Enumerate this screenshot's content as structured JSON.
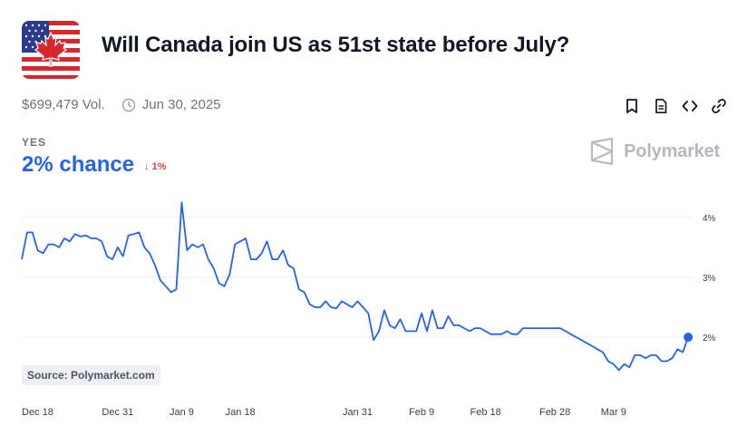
{
  "header": {
    "title": "Will Canada join US as 51st state before July?",
    "icon": "us-canada-flag-icon"
  },
  "meta": {
    "volume": "$699,479 Vol.",
    "end_date": "Jun 30, 2025"
  },
  "actions": [
    {
      "name": "bookmark-icon"
    },
    {
      "name": "document-icon"
    },
    {
      "name": "embed-code-icon"
    },
    {
      "name": "link-icon"
    }
  ],
  "outcome": {
    "label": "YES",
    "chance": "2% chance",
    "change": "↓ 1%",
    "chance_color": "#2563eb",
    "change_color": "#e03e3e"
  },
  "brand": {
    "name": "Polymarket"
  },
  "source": "Source: Polymarket.com",
  "chart_data": {
    "type": "line",
    "x_tick_labels": [
      "Dec 18",
      "Dec 31",
      "Jan 9",
      "Jan 18",
      "Jan 31",
      "Feb 9",
      "Feb 18",
      "Feb 28",
      "Mar 9"
    ],
    "y_tick_labels": [
      "4%",
      "3%",
      "2%"
    ],
    "y_ticks": [
      4,
      3,
      2
    ],
    "ylim": [
      1.35,
      4.3
    ],
    "xlim": [
      0,
      126
    ],
    "grid": true,
    "line_color": "#2563eb",
    "series": [
      {
        "x": [
          0,
          1,
          2,
          3,
          4,
          5,
          6,
          7,
          8,
          9,
          10,
          11,
          12,
          13,
          14,
          15,
          16,
          17,
          18,
          19,
          20,
          21,
          22,
          23,
          24,
          25,
          26,
          27,
          28,
          29,
          30,
          31,
          32,
          33,
          34,
          35,
          36,
          37,
          38,
          39,
          40,
          41,
          42,
          43,
          44,
          45,
          46,
          47,
          48,
          49,
          50,
          51,
          52,
          53,
          54,
          55,
          56,
          57,
          58,
          59,
          60,
          61,
          62,
          63,
          64,
          65,
          66,
          67,
          68,
          69,
          70,
          71,
          72,
          73,
          74,
          75,
          76,
          77,
          78,
          79,
          80,
          81,
          82,
          83,
          84,
          85,
          86,
          87,
          88,
          89,
          90,
          91,
          92,
          93,
          94,
          95,
          96,
          97,
          98,
          99,
          100,
          101,
          102,
          103,
          104,
          105,
          106,
          107,
          108,
          109,
          110,
          111,
          112,
          113,
          114,
          115,
          116,
          117,
          118,
          119,
          120,
          121,
          122,
          123,
          124,
          125
        ],
        "y": [
          3.3,
          3.75,
          3.75,
          3.45,
          3.4,
          3.55,
          3.55,
          3.5,
          3.65,
          3.6,
          3.72,
          3.68,
          3.7,
          3.65,
          3.65,
          3.6,
          3.35,
          3.3,
          3.5,
          3.35,
          3.7,
          3.72,
          3.75,
          3.5,
          3.4,
          3.2,
          2.95,
          2.85,
          2.75,
          2.8,
          4.25,
          3.45,
          3.55,
          3.5,
          3.55,
          3.3,
          3.15,
          2.9,
          2.85,
          3.05,
          3.55,
          3.6,
          3.65,
          3.3,
          3.3,
          3.4,
          3.6,
          3.3,
          3.3,
          3.45,
          3.2,
          3.15,
          2.8,
          2.75,
          2.55,
          2.5,
          2.5,
          2.6,
          2.5,
          2.48,
          2.6,
          2.55,
          2.5,
          2.6,
          2.5,
          2.4,
          1.95,
          2.1,
          2.45,
          2.2,
          2.15,
          2.3,
          2.1,
          2.1,
          2.1,
          2.4,
          2.1,
          2.45,
          2.15,
          2.15,
          2.35,
          2.2,
          2.2,
          2.15,
          2.1,
          2.15,
          2.15,
          2.1,
          2.05,
          2.05,
          2.05,
          2.1,
          2.05,
          2.05,
          2.15,
          2.15,
          2.15,
          2.15,
          2.15,
          2.15,
          2.15,
          2.15,
          2.1,
          2.05,
          2.0,
          1.95,
          1.9,
          1.85,
          1.8,
          1.75,
          1.6,
          1.55,
          1.45,
          1.55,
          1.5,
          1.7,
          1.7,
          1.65,
          1.7,
          1.7,
          1.6,
          1.6,
          1.65,
          1.8,
          1.75,
          2.0
        ]
      }
    ]
  }
}
